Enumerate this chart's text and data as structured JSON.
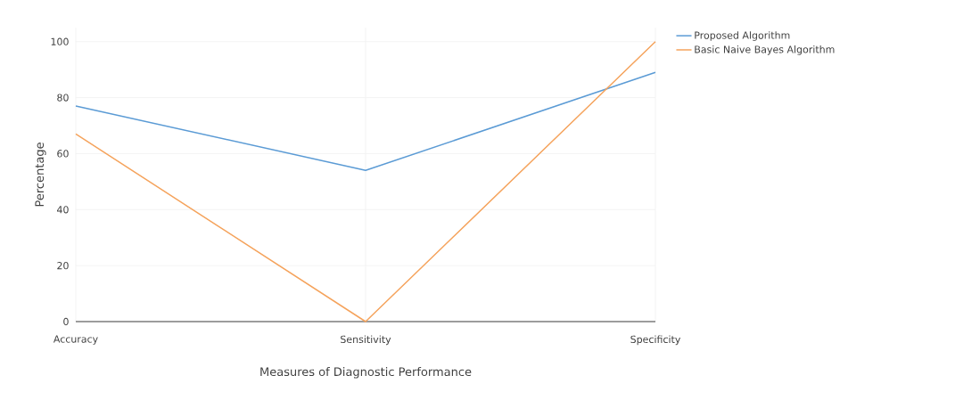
{
  "chart_data": {
    "type": "line",
    "xlabel": "Measures of Diagnostic Performance",
    "ylabel": "Percentage",
    "categories": [
      "Accuracy",
      "Sensitivity",
      "Specificity"
    ],
    "series": [
      {
        "name": "Proposed Algorithm",
        "color": "#5b9bd5",
        "values": [
          77,
          54,
          89
        ]
      },
      {
        "name": "Basic Naive Bayes Algorithm",
        "color": "#f5a35c",
        "values": [
          67,
          0,
          100
        ]
      }
    ],
    "ylim": [
      0,
      105
    ],
    "yticks": [
      0,
      20,
      40,
      60,
      80,
      100
    ],
    "grid": true,
    "legend": "top right",
    "marker": "none",
    "line_style": "solid"
  }
}
